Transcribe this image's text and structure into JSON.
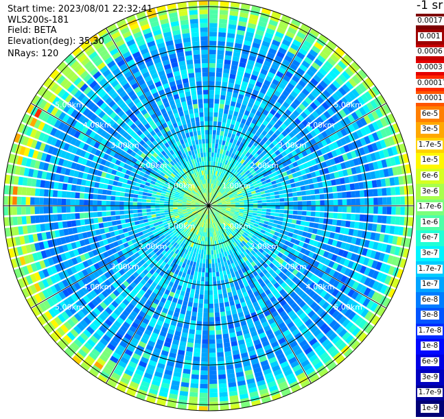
{
  "info": {
    "start_time": "Start time: 2023/08/01 22:32:41",
    "device": "WLS200s-181",
    "field": "Field: BETA",
    "elevation": "Elevation(deg): 35.30",
    "nrays": "NRays: 120"
  },
  "colorbar": {
    "unit_title": "-1 sr",
    "labels": [
      "0.0017",
      "0.001",
      "0.0006",
      "0.0003",
      "0.00017",
      "0.0001",
      "6e-5",
      "3e-5",
      "1.7e-5",
      "1e-5",
      "6e-6",
      "3e-6",
      "1.7e-6",
      "1e-6",
      "6e-7",
      "3e-7",
      "1.7e-7",
      "1e-7",
      "6e-8",
      "3e-8",
      "1.7e-8",
      "1e-8",
      "6e-9",
      "3e-9",
      "1.7e-9",
      "1e-9"
    ],
    "colors": [
      "#7f0000",
      "#9e0000",
      "#c40000",
      "#e60000",
      "#ff2a00",
      "#ff5500",
      "#ff7f00",
      "#ffa800",
      "#ffd200",
      "#fff700",
      "#d6ff21",
      "#a8ff4d",
      "#7bff7b",
      "#4dffa8",
      "#21ffd6",
      "#00f4ff",
      "#00ccff",
      "#00a4ff",
      "#007cff",
      "#0054ff",
      "#002cff",
      "#0008ff",
      "#0000e3",
      "#0000bf",
      "#00009a",
      "#000076"
    ]
  },
  "chart_data": {
    "type": "heatmap",
    "subtype": "polar-ppi-scan",
    "field": "BETA",
    "elevation_deg": 35.3,
    "n_rays": 120,
    "range_rings_km": [
      1,
      2,
      3,
      4,
      5
    ],
    "ring_labels": [
      "1.00km",
      "2.00km",
      "3.00km",
      "4.00km",
      "5.00km"
    ],
    "spoke_step_deg": 30,
    "colorbar_scale": "log",
    "colorbar_range": [
      1e-09,
      0.0017
    ],
    "approx_profile": [
      {
        "range_km": 0.5,
        "value": "1.7e-6"
      },
      {
        "range_km": 1.5,
        "value": "1.7e-7"
      },
      {
        "range_km": 3.0,
        "value": "1e-7"
      },
      {
        "range_km": 4.5,
        "value": "1e-7"
      },
      {
        "range_km": 5.1,
        "value": "3e-6"
      }
    ]
  }
}
